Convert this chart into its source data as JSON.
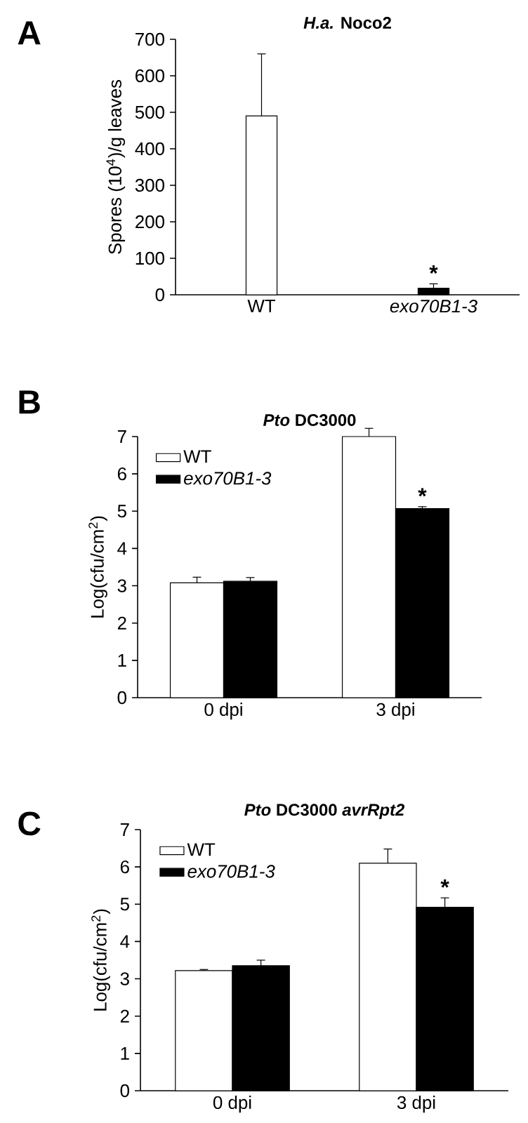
{
  "chart_data": [
    {
      "type": "bar",
      "title": "*H.a.* Noco2",
      "ylabel": "Spores (10$^{4}$)/g leaves",
      "categories": [
        "WT",
        "*exo70B1-3*"
      ],
      "values": [
        490,
        18
      ],
      "errors": [
        170,
        12
      ],
      "colors": [
        "#ffffff",
        "#000000"
      ],
      "ylim": [
        0,
        700
      ],
      "yticks": [
        0,
        100,
        200,
        300,
        400,
        500,
        600,
        700
      ],
      "annotations": [
        "A",
        {
          "text": "*",
          "x": "*exo70B1-3*",
          "y": 18
        }
      ]
    },
    {
      "type": "bar",
      "title": "*Pto* DC3000",
      "ylabel": "Log(cfu/cm$^{2}$)",
      "categories": [
        "0  dpi",
        "3 dpi"
      ],
      "series": [
        {
          "name": "WT",
          "color": "#ffffff",
          "values": [
            3.08,
            7.0
          ],
          "errors": [
            0.15,
            0.22
          ]
        },
        {
          "name": "*exo70B1-3*",
          "color": "#000000",
          "values": [
            3.12,
            5.07
          ],
          "errors": [
            0.1,
            0.05
          ]
        }
      ],
      "ylim": [
        0,
        7
      ],
      "yticks": [
        0,
        1,
        2,
        3,
        4,
        5,
        6,
        7
      ],
      "legend": "top left",
      "annotations": [
        "B",
        {
          "text": "*",
          "x": "3 dpi",
          "y": 5.07
        }
      ]
    },
    {
      "type": "bar",
      "title": "*Pto* DC3000 *avrRpt2*",
      "ylabel": "Log(cfu/cm$^{2}$)",
      "categories": [
        "0  dpi",
        "3 dpi"
      ],
      "series": [
        {
          "name": "WT",
          "color": "#ffffff",
          "values": [
            3.22,
            6.1
          ],
          "errors": [
            0.03,
            0.38
          ]
        },
        {
          "name": "*exo70B1-3*",
          "color": "#000000",
          "values": [
            3.35,
            4.92
          ],
          "errors": [
            0.15,
            0.25
          ]
        }
      ],
      "ylim": [
        0,
        7
      ],
      "yticks": [
        0,
        1,
        2,
        3,
        4,
        5,
        6,
        7
      ],
      "legend": "top left",
      "annotations": [
        "C",
        {
          "text": "*",
          "x": "3 dpi",
          "y": 4.92
        }
      ]
    }
  ]
}
